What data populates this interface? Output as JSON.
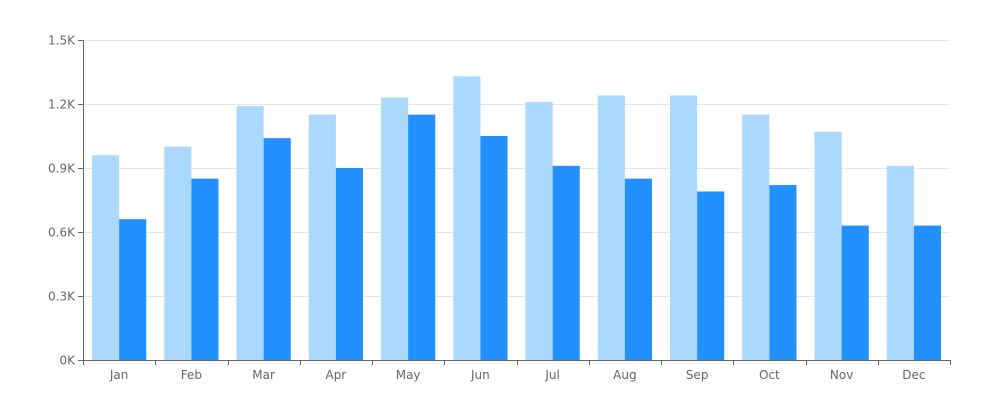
{
  "chart_data": {
    "type": "bar",
    "categories": [
      "Jan",
      "Feb",
      "Mar",
      "Apr",
      "May",
      "Jun",
      "Jul",
      "Aug",
      "Sep",
      "Oct",
      "Nov",
      "Dec"
    ],
    "series": [
      {
        "values": [
          960,
          1000,
          1190,
          1150,
          1230,
          1330,
          1210,
          1240,
          1240,
          1150,
          1070,
          910
        ]
      },
      {
        "values": [
          660,
          850,
          1040,
          900,
          1150,
          1050,
          910,
          850,
          790,
          820,
          630,
          630
        ]
      }
    ],
    "yticks": [
      0,
      300,
      600,
      900,
      1200,
      1500
    ],
    "ytick_labels": [
      "0K",
      "0.3K",
      "0.6K",
      "0.9K",
      "1.2K",
      "1.5K"
    ],
    "ylim": [
      0,
      1500
    ],
    "grid": true,
    "legend": "none",
    "colors": {
      "series": [
        "#abd8fd",
        "#2291fd"
      ],
      "grid": "#e6e6e6",
      "axis": "#666666",
      "text": "#666666"
    }
  }
}
